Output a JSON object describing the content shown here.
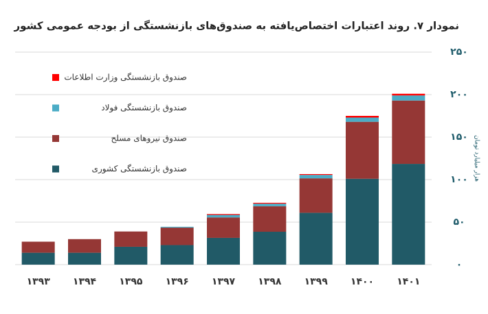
{
  "chart_data": {
    "type": "stacked-bar",
    "title": "نمودار ۷. روند اعتبارات اختصاص‌یافته به صندوق‌های بازنشستگی از بودجه عمومی کشور",
    "y_label": "هزار میلیارد تومان",
    "categories": [
      "۱۳۹۳",
      "۱۳۹۴",
      "۱۳۹۵",
      "۱۳۹۶",
      "۱۳۹۷",
      "۱۳۹۸",
      "۱۳۹۹",
      "۱۴۰۰",
      "۱۴۰۱"
    ],
    "series": [
      {
        "name": "صندوق بازنشستگی کشوری",
        "color": "#215a67",
        "values": [
          14,
          14,
          21,
          23,
          31.5,
          38.7,
          61,
          101,
          118.5
        ]
      },
      {
        "name": "صندوق نیروهای مسلح",
        "color": "#953735",
        "values": [
          13,
          16,
          18,
          20.5,
          24,
          30,
          40.5,
          67,
          74.5
        ]
      },
      {
        "name": "صندوق بازنشستگی فولاد",
        "color": "#4bacc6",
        "values": [
          0,
          0,
          0,
          1,
          3,
          3,
          4,
          5,
          6
        ]
      },
      {
        "name": "صندوق بازنشستگی وزارت اطلاعات",
        "color": "#ff0000",
        "values": [
          0,
          0,
          0,
          0,
          1,
          1,
          1,
          2,
          2
        ]
      }
    ],
    "ylim": [
      0,
      250
    ],
    "yticks": [
      {
        "value": 0,
        "label": "۰"
      },
      {
        "value": 50,
        "label": "۵۰"
      },
      {
        "value": 100,
        "label": "۱۰۰"
      },
      {
        "value": 150,
        "label": "۱۵۰"
      },
      {
        "value": 200,
        "label": "۲۰۰"
      },
      {
        "value": 250,
        "label": "۲۵۰"
      }
    ],
    "grid": true
  }
}
